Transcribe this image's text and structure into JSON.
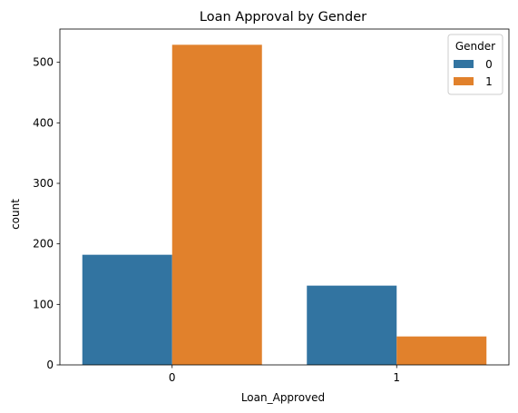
{
  "chart_data": {
    "type": "bar",
    "title": "Loan Approval by Gender",
    "xlabel": "Loan_Approved",
    "ylabel": "count",
    "categories": [
      "0",
      "1"
    ],
    "series": [
      {
        "name": "0",
        "values": [
          182,
          131
        ],
        "color": "#3274a1"
      },
      {
        "name": "1",
        "values": [
          529,
          47
        ],
        "color": "#e1812c"
      }
    ],
    "ylim": [
      0,
      555
    ],
    "yticks": [
      0,
      100,
      200,
      300,
      400,
      500
    ],
    "grid": false,
    "legend": {
      "title": "Gender",
      "position": "top-right"
    }
  }
}
